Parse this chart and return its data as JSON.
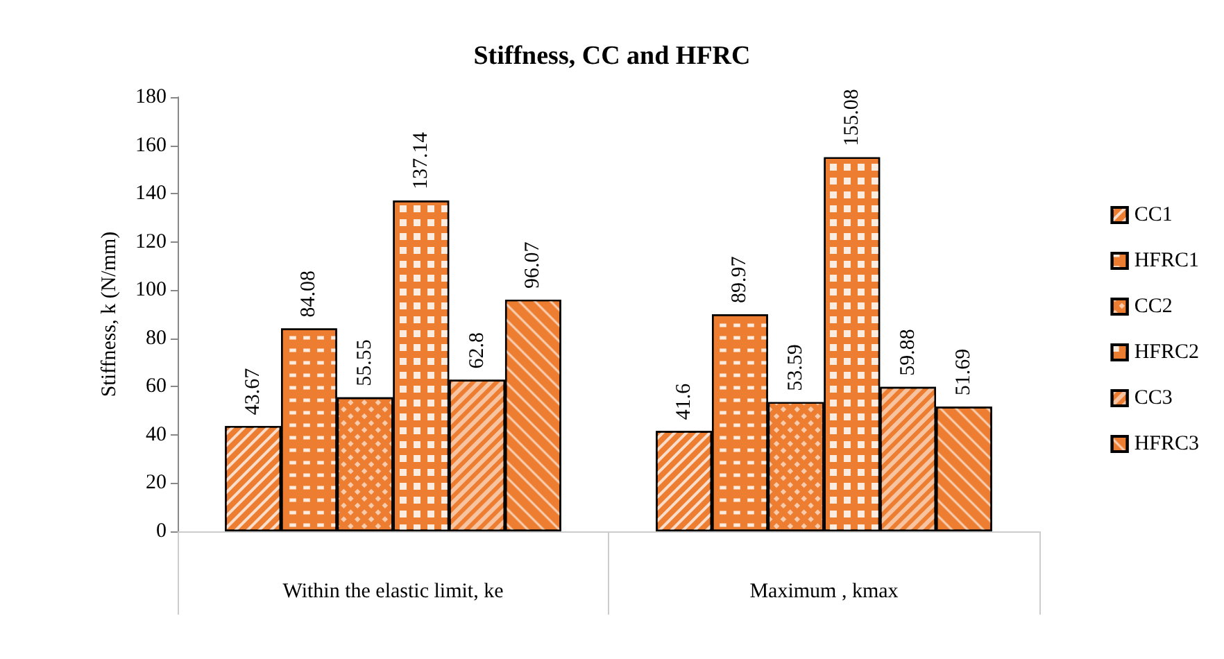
{
  "chart_data": {
    "type": "bar",
    "title": "Stiffness, CC and HFRC",
    "ylabel": "Stiffness, k (N/mm)",
    "categories": [
      "Within the elastic limit, ke",
      "Maximum , kmax"
    ],
    "series": [
      {
        "name": "CC1",
        "color": "#ed7d31",
        "values": [
          43.67,
          41.6
        ]
      },
      {
        "name": "HFRC1",
        "color": "#ed7d31",
        "values": [
          84.08,
          89.97
        ]
      },
      {
        "name": "CC2",
        "color": "#ed7d31",
        "values": [
          55.55,
          53.59
        ]
      },
      {
        "name": "HFRC2",
        "color": "#ed7d31",
        "values": [
          137.14,
          155.08
        ]
      },
      {
        "name": "CC3",
        "color": "#ed7d31",
        "values": [
          62.8,
          59.88
        ]
      },
      {
        "name": "HFRC3",
        "color": "#ed7d31",
        "values": [
          96.07,
          51.69
        ]
      }
    ],
    "ylim": [
      0,
      180
    ],
    "yticks": [
      0,
      20,
      40,
      60,
      80,
      100,
      120,
      140,
      160,
      180
    ],
    "grid": false,
    "legend": "right",
    "data_labels": true
  }
}
